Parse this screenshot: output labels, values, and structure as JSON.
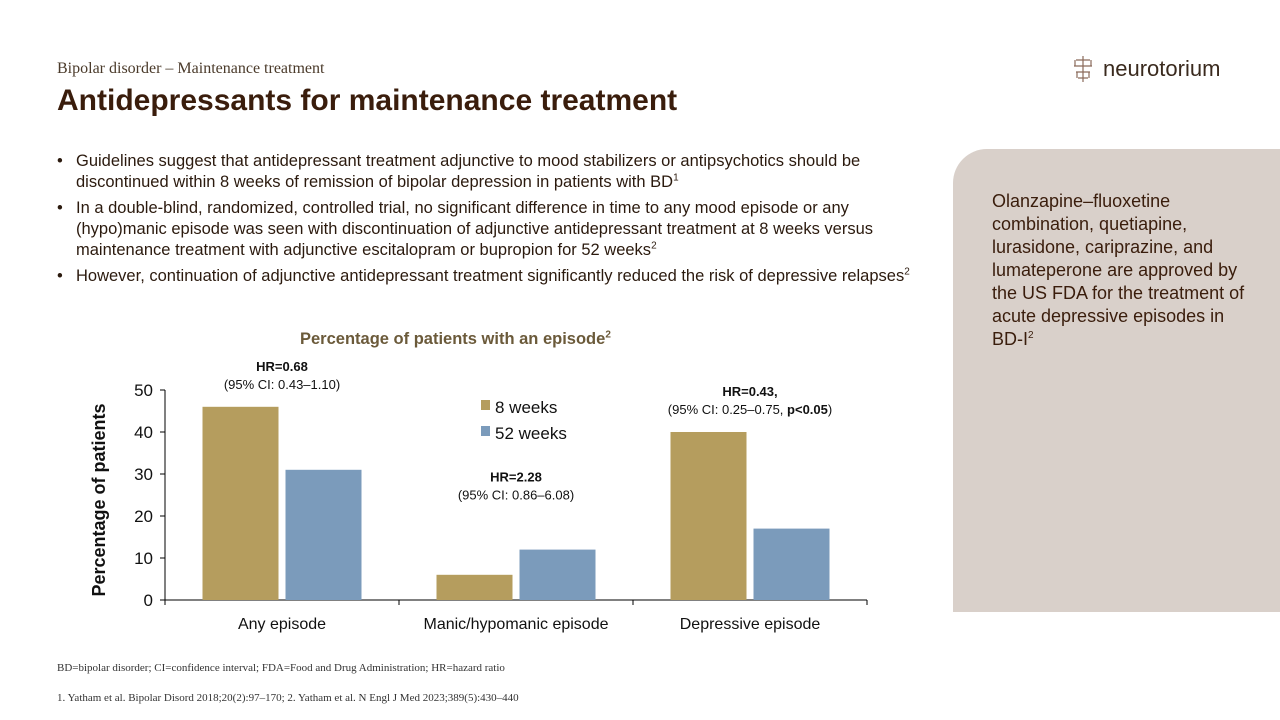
{
  "header": {
    "section": "Bipolar disorder – Maintenance  treatment",
    "title": "Antidepressants for maintenance treatment",
    "logo_text": "neurotorium"
  },
  "bullets": [
    {
      "text": "Guidelines suggest that antidepressant treatment adjunctive to mood stabilizers or antipsychotics should be discontinued within 8 weeks of remission of bipolar depression in patients with BD",
      "ref": "1"
    },
    {
      "text": "In a double-blind, randomized, controlled trial, no significant difference in time to any mood episode or any (hypo)manic episode was seen with discontinuation of adjunctive antidepressant treatment at 8 weeks versus maintenance treatment with adjunctive escitalopram or bupropion for 52 weeks",
      "ref": "2"
    },
    {
      "text": "However, continuation of adjunctive antidepressant treatment significantly reduced the risk of depressive relapses",
      "ref": "2"
    }
  ],
  "side_panel": {
    "text": "Olanzapine–fluoxetine combination, quetiapine, lurasidone, cariprazine, and lumateperone  are approved by the US FDA for the treatment of acute depressive episodes in BD-I",
    "ref": "2"
  },
  "chart_data": {
    "type": "bar",
    "title": "Percentage of patients with an episode",
    "title_ref": "2",
    "ylabel": "Percentage of patients",
    "xlabel": "",
    "ylim": [
      0,
      50
    ],
    "yticks": [
      0,
      10,
      20,
      30,
      40,
      50
    ],
    "categories": [
      "Any episode",
      "Manic/hypomanic episode",
      "Depressive episode"
    ],
    "series": [
      {
        "name": "8 weeks",
        "color": "#b59d5e",
        "values": [
          46,
          6,
          40
        ]
      },
      {
        "name": "52 weeks",
        "color": "#7b9bbb",
        "values": [
          31,
          12,
          17
        ]
      }
    ],
    "legend": "top-center",
    "annotations": [
      {
        "hr": "HR=0.68",
        "ci": "(95% CI: 0.43–1.10)",
        "p": ""
      },
      {
        "hr": "HR=2.28",
        "ci": "(95% CI: 0.86–6.08)",
        "p": ""
      },
      {
        "hr": "HR=0.43,",
        "ci": "(95% CI: 0.25–0.75, ",
        "p": "p<0.05"
      }
    ]
  },
  "footer": {
    "abbreviations": "BD=bipolar disorder; CI=confidence interval; FDA=Food and Drug Administration; HR=hazard ratio",
    "references": "1. Yatham et al. Bipolar Disord 2018;20(2):97–170;  2. Yatham et al. N Engl J Med 2023;389(5):430–440"
  },
  "colors": {
    "title": "#3a1d0c",
    "panel": "#d9d0ca"
  }
}
